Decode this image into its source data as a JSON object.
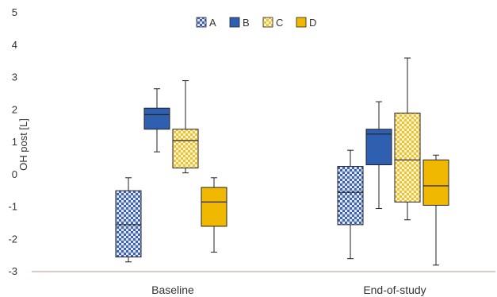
{
  "chart_data": {
    "type": "box",
    "ylabel": "OH post [L]",
    "ylim": [
      -3,
      5
    ],
    "yticks": [
      5,
      4,
      3,
      2,
      1,
      0,
      -1,
      -2,
      -3
    ],
    "categories": [
      "Baseline",
      "End-of-study"
    ],
    "legend_position": "top-center",
    "grid": false,
    "series": [
      {
        "name": "A",
        "color": "#3f63b4",
        "pattern": "checker",
        "boxes": [
          {
            "min": -2.7,
            "q1": -2.55,
            "median": -1.55,
            "q3": -0.5,
            "max": -0.1
          },
          {
            "min": -2.6,
            "q1": -1.55,
            "median": -0.55,
            "q3": 0.25,
            "max": 0.75
          }
        ]
      },
      {
        "name": "B",
        "color": "#2e5fb0",
        "pattern": "solid",
        "boxes": [
          {
            "min": 0.7,
            "q1": 1.4,
            "median": 1.85,
            "q3": 2.05,
            "max": 2.65
          },
          {
            "min": -1.05,
            "q1": 0.3,
            "median": 1.25,
            "q3": 1.4,
            "max": 2.25
          }
        ]
      },
      {
        "name": "C",
        "color": "#f2c12e",
        "pattern": "checker",
        "boxes": [
          {
            "min": 0.05,
            "q1": 0.2,
            "median": 1.05,
            "q3": 1.4,
            "max": 2.9
          },
          {
            "min": -1.4,
            "q1": -0.85,
            "median": 0.45,
            "q3": 1.9,
            "max": 3.6
          }
        ]
      },
      {
        "name": "D",
        "color": "#f0b800",
        "pattern": "solid",
        "boxes": [
          {
            "min": -2.4,
            "q1": -1.6,
            "median": -0.85,
            "q3": -0.4,
            "max": -0.1
          },
          {
            "min": -2.8,
            "q1": -0.95,
            "median": -0.35,
            "q3": 0.45,
            "max": 0.6
          }
        ]
      }
    ]
  }
}
